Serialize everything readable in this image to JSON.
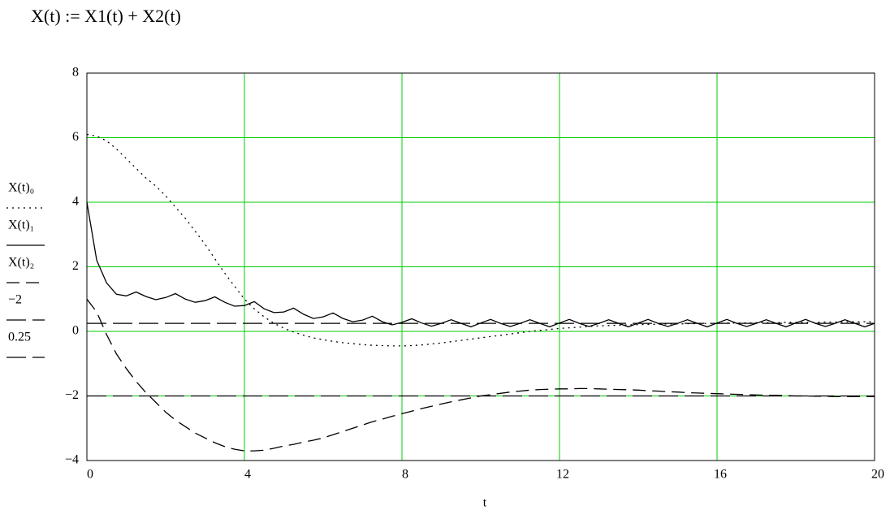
{
  "chart_data": {
    "type": "line",
    "title": "X(t) := X1(t) + X2(t)",
    "xlabel": "t",
    "x": [
      0,
      0.25,
      0.5,
      0.75,
      1,
      1.25,
      1.5,
      1.75,
      2,
      2.25,
      2.5,
      2.75,
      3,
      3.25,
      3.5,
      3.75,
      4,
      4.25,
      4.5,
      4.75,
      5,
      5.25,
      5.5,
      5.75,
      6,
      6.25,
      6.5,
      6.75,
      7,
      7.25,
      7.5,
      7.75,
      8,
      8.25,
      8.5,
      8.75,
      9,
      9.25,
      9.5,
      9.75,
      10,
      10.25,
      10.5,
      10.75,
      11,
      11.25,
      11.5,
      11.75,
      12,
      12.25,
      12.5,
      12.75,
      13,
      13.25,
      13.5,
      13.75,
      14,
      14.25,
      14.5,
      14.75,
      15,
      15.25,
      15.5,
      15.75,
      16,
      16.25,
      16.5,
      16.75,
      17,
      17.25,
      17.5,
      17.75,
      18,
      18.25,
      18.5,
      18.75,
      19,
      19.25,
      19.5,
      19.75,
      20
    ],
    "series": [
      {
        "name": "X(t)₀",
        "color": "#000000",
        "style": "dotted",
        "values": [
          6.1,
          6.05,
          5.9,
          5.65,
          5.35,
          5.05,
          4.75,
          4.5,
          4.2,
          3.85,
          3.5,
          3.1,
          2.7,
          2.25,
          1.8,
          1.4,
          1.0,
          0.7,
          0.45,
          0.25,
          0.1,
          -0.02,
          -0.12,
          -0.2,
          -0.26,
          -0.31,
          -0.35,
          -0.38,
          -0.41,
          -0.43,
          -0.44,
          -0.45,
          -0.45,
          -0.44,
          -0.42,
          -0.39,
          -0.36,
          -0.32,
          -0.28,
          -0.24,
          -0.2,
          -0.16,
          -0.12,
          -0.08,
          -0.04,
          0,
          0.03,
          0.06,
          0.09,
          0.11,
          0.13,
          0.15,
          0.17,
          0.18,
          0.19,
          0.2,
          0.21,
          0.22,
          0.22,
          0.23,
          0.23,
          0.24,
          0.24,
          0.25,
          0.25,
          0.26,
          0.26,
          0.26,
          0.27,
          0.27,
          0.27,
          0.28,
          0.28,
          0.28,
          0.28,
          0.29,
          0.29,
          0.29,
          0.3,
          0.3,
          0.3
        ]
      },
      {
        "name": "X(t)₁",
        "color": "#000000",
        "style": "solid",
        "values": [
          4.0,
          2.2,
          1.5,
          1.15,
          1.1,
          1.22,
          1.08,
          0.98,
          1.05,
          1.17,
          1.0,
          0.9,
          0.95,
          1.07,
          0.9,
          0.78,
          0.8,
          0.92,
          0.7,
          0.58,
          0.6,
          0.72,
          0.53,
          0.4,
          0.45,
          0.57,
          0.4,
          0.3,
          0.35,
          0.47,
          0.3,
          0.2,
          0.28,
          0.39,
          0.26,
          0.16,
          0.25,
          0.36,
          0.25,
          0.14,
          0.26,
          0.37,
          0.25,
          0.15,
          0.25,
          0.36,
          0.25,
          0.14,
          0.26,
          0.37,
          0.25,
          0.15,
          0.25,
          0.36,
          0.25,
          0.14,
          0.26,
          0.37,
          0.25,
          0.15,
          0.25,
          0.36,
          0.25,
          0.14,
          0.26,
          0.37,
          0.25,
          0.15,
          0.25,
          0.36,
          0.25,
          0.14,
          0.26,
          0.37,
          0.25,
          0.15,
          0.25,
          0.36,
          0.25,
          0.14,
          0.25
        ]
      },
      {
        "name": "X(t)₂",
        "color": "#000000",
        "style": "dashed",
        "values": [
          1.0,
          0.6,
          -0.1,
          -0.7,
          -1.15,
          -1.55,
          -1.9,
          -2.2,
          -2.5,
          -2.75,
          -2.95,
          -3.15,
          -3.3,
          -3.45,
          -3.57,
          -3.65,
          -3.7,
          -3.7,
          -3.68,
          -3.62,
          -3.55,
          -3.5,
          -3.43,
          -3.37,
          -3.3,
          -3.2,
          -3.1,
          -3.0,
          -2.9,
          -2.8,
          -2.72,
          -2.63,
          -2.55,
          -2.47,
          -2.39,
          -2.32,
          -2.25,
          -2.18,
          -2.12,
          -2.06,
          -2.0,
          -1.96,
          -1.92,
          -1.88,
          -1.85,
          -1.82,
          -1.8,
          -1.79,
          -1.78,
          -1.78,
          -1.77,
          -1.77,
          -1.78,
          -1.79,
          -1.8,
          -1.81,
          -1.82,
          -1.84,
          -1.85,
          -1.87,
          -1.88,
          -1.9,
          -1.91,
          -1.92,
          -1.93,
          -1.94,
          -1.95,
          -1.96,
          -1.97,
          -1.98,
          -1.98,
          -1.99,
          -2.0,
          -2.0,
          -2.01,
          -2.01,
          -2.02,
          -2.02,
          -2.02,
          -2.02,
          -2.02
        ]
      },
      {
        "name": "−2",
        "color": "#000000",
        "style": "longdash",
        "x": [
          0,
          20
        ],
        "values": [
          -2,
          -2
        ]
      },
      {
        "name": "0.25",
        "color": "#000000",
        "style": "longdash",
        "x": [
          0,
          20
        ],
        "values": [
          0.25,
          0.25
        ]
      }
    ],
    "xlim": [
      0,
      20
    ],
    "xticks": [
      0,
      4,
      8,
      12,
      16,
      20
    ],
    "ylim": [
      -4,
      8
    ],
    "yticks": [
      8,
      6,
      4,
      2,
      0,
      {
        "value": -2,
        "label": "−2"
      },
      {
        "value": -4,
        "label": "−4"
      }
    ],
    "grid": true,
    "grid_color": "#00cc00",
    "legend": "left"
  }
}
